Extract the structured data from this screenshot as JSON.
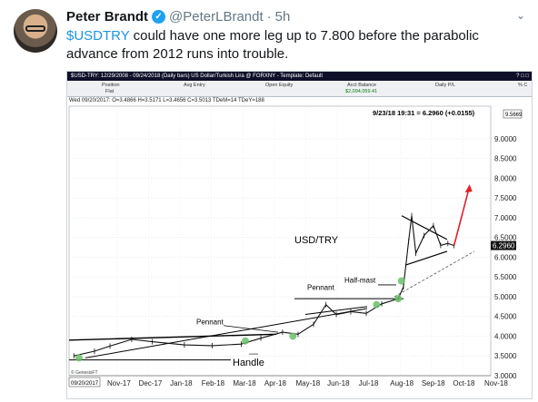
{
  "tweet": {
    "author_name": "Peter Brandt",
    "handle": "@PeterLBrandt",
    "separator": "·",
    "time": "5h",
    "cashtag": "$USDTRY",
    "text_rest": " could have one more leg up to 7.800 before the parabolic advance from 2012 runs into trouble.",
    "icons": {
      "verified": "verified-badge-icon",
      "more": "chevron-down-icon"
    }
  },
  "chart_window": {
    "title_bar": "$USD-TRY:  12/29/2008 - 09/24/2018 (Daily bars)   US Dollar/Turkish Lira @ FORXNY  - Template: Default",
    "title_right": "? □ □",
    "acct_headers": [
      "Position",
      "Avg Entry",
      "Open Equity",
      "Acct Balance",
      "Daily P/L",
      "% C"
    ],
    "acct_row_label": "Flat",
    "acct_balance": "$2,094,059.41",
    "ohlc_line": "Wed 09/20/2017:  O=3.4866  H=3.5171  L=3.4656  C=3.5013  TDeM=14  TDeY=188",
    "readout": "9/23/18 19:31 = 6.2960 (+0.0155)",
    "last_price": "6.2960",
    "top_box": "9.5669",
    "date_box": "09/20/2017",
    "footer": "© GenesisFT",
    "accent_red": "#e11f26",
    "marker_green": "#6abf69"
  },
  "chart_data": {
    "type": "line",
    "title": "USD/TRY",
    "xlabel": "",
    "ylabel": "",
    "x_ticks": [
      "Nov-17",
      "Dec-17",
      "Jan-18",
      "Feb-18",
      "Mar-18",
      "Apr-18",
      "May-18",
      "Jun-18",
      "Jul-18",
      "Aug-18",
      "Sep-18",
      "Oct-18",
      "Nov-18"
    ],
    "y_ticks": [
      3.0,
      3.5,
      4.0,
      4.5,
      5.0,
      5.5,
      6.0,
      6.5,
      7.0,
      7.5,
      8.0,
      8.5,
      9.0
    ],
    "ylim": [
      3.0,
      9.55
    ],
    "annotations": [
      "Pennant",
      "Pennant",
      "Half-mast",
      "Handle"
    ],
    "series": [
      {
        "values": [
          {
            "x": "2017-09-20",
            "y": 3.5
          },
          {
            "x": "2017-10-10",
            "y": 3.62
          },
          {
            "x": "2017-10-25",
            "y": 3.75
          },
          {
            "x": "2017-11-15",
            "y": 3.92
          },
          {
            "x": "2017-12-05",
            "y": 3.86
          },
          {
            "x": "2018-01-05",
            "y": 3.78
          },
          {
            "x": "2018-02-01",
            "y": 3.76
          },
          {
            "x": "2018-03-01",
            "y": 3.8
          },
          {
            "x": "2018-03-20",
            "y": 3.95
          },
          {
            "x": "2018-04-10",
            "y": 4.1
          },
          {
            "x": "2018-04-25",
            "y": 4.05
          },
          {
            "x": "2018-05-10",
            "y": 4.3
          },
          {
            "x": "2018-05-22",
            "y": 4.8
          },
          {
            "x": "2018-06-01",
            "y": 4.55
          },
          {
            "x": "2018-06-15",
            "y": 4.62
          },
          {
            "x": "2018-06-30",
            "y": 4.58
          },
          {
            "x": "2018-07-15",
            "y": 4.82
          },
          {
            "x": "2018-07-31",
            "y": 4.95
          },
          {
            "x": "2018-08-05",
            "y": 5.25
          },
          {
            "x": "2018-08-10",
            "y": 6.4
          },
          {
            "x": "2018-08-13",
            "y": 7.05
          },
          {
            "x": "2018-08-17",
            "y": 6.1
          },
          {
            "x": "2018-08-25",
            "y": 6.55
          },
          {
            "x": "2018-09-03",
            "y": 6.8
          },
          {
            "x": "2018-09-10",
            "y": 6.3
          },
          {
            "x": "2018-09-17",
            "y": 6.35
          },
          {
            "x": "2018-09-23",
            "y": 6.296
          }
        ]
      }
    ],
    "projection": {
      "from": {
        "x": "2018-09-23",
        "y": 6.3
      },
      "to": {
        "x": "2018-10-08",
        "y": 7.8
      }
    }
  }
}
